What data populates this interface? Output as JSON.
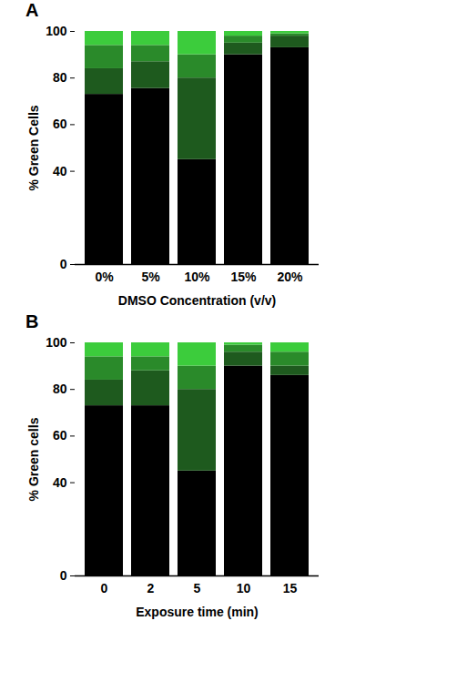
{
  "chart_data": [
    {
      "type": "bar",
      "stacked": true,
      "title": "A",
      "x_label": "DMSO Concentration (v/v)",
      "y_label": "% Green Cells",
      "categories": [
        "0%",
        "5%",
        "10%",
        "15%",
        "20%"
      ],
      "series": [
        {
          "color": "#000000",
          "values": [
            73,
            75.5,
            45,
            90,
            93
          ]
        },
        {
          "color": "#1e5a1e",
          "values": [
            11,
            11.5,
            35,
            5,
            5
          ]
        },
        {
          "color": "#2a8a2a",
          "values": [
            10,
            7,
            10,
            3,
            1
          ]
        },
        {
          "color": "#3ccc3c",
          "values": [
            6,
            6,
            10,
            2,
            1
          ]
        }
      ],
      "ylim": [
        0,
        100
      ],
      "yticks": [
        0,
        40,
        60,
        80,
        100
      ]
    },
    {
      "type": "bar",
      "stacked": true,
      "title": "B",
      "x_label": "Exposure time (min)",
      "y_label": "% Green cells",
      "categories": [
        "0",
        "2",
        "5",
        "10",
        "15"
      ],
      "series": [
        {
          "color": "#000000",
          "values": [
            73,
            73,
            45,
            90,
            86
          ]
        },
        {
          "color": "#1e5a1e",
          "values": [
            11,
            15,
            35,
            6,
            4
          ]
        },
        {
          "color": "#2a8a2a",
          "values": [
            10,
            6,
            10,
            3,
            6
          ]
        },
        {
          "color": "#3ccc3c",
          "values": [
            6,
            6,
            10,
            1,
            4
          ]
        }
      ],
      "ylim": [
        0,
        100
      ],
      "yticks": [
        0,
        40,
        60,
        80,
        100
      ]
    }
  ]
}
